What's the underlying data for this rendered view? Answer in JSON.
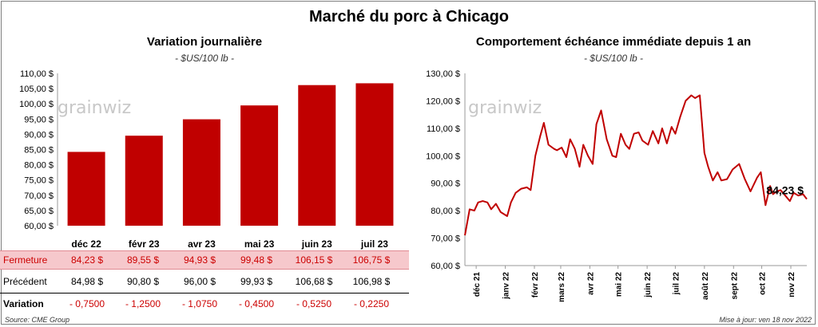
{
  "title": "Marché du porc à Chicago",
  "left": {
    "title": "Variation  journalière",
    "unit": "- $US/100 lb -"
  },
  "right": {
    "title": "Comportement  échéance immédiate depuis 1 an",
    "unit": "- $US/100 lb -",
    "last_label": "84,23 $"
  },
  "watermark": "grainwiz",
  "table": {
    "fermeture_label": "Fermeture",
    "precedent_label": "Précédent",
    "variation_label": "Variation",
    "fermeture": [
      "84,23  $",
      "89,55  $",
      "94,93  $",
      "99,48  $",
      "106,15  $",
      "106,75  $"
    ],
    "precedent": [
      "84,98  $",
      "90,80  $",
      "96,00  $",
      "99,93  $",
      "106,68  $",
      "106,98  $"
    ],
    "variation": [
      "- 0,7500",
      "- 1,2500",
      "- 1,0750",
      "- 0,4500",
      "- 0,5250",
      "- 0,2250"
    ]
  },
  "footer": {
    "source": "Source: CME Group",
    "updated": "Mise à jour: ven 18 nov 2022"
  },
  "colors": {
    "bar": "#c00000",
    "line": "#c00000",
    "highlight": "#f6c8cc"
  },
  "chart_data": [
    {
      "type": "bar",
      "title": "Variation  journalière",
      "subtitle": "- $US/100 lb -",
      "categories": [
        "déc 22",
        "févr 23",
        "avr 23",
        "mai 23",
        "juin 23",
        "juil 23"
      ],
      "values": [
        84.23,
        89.55,
        94.93,
        99.48,
        106.15,
        106.75
      ],
      "ylim": [
        60,
        110
      ],
      "yticks": [
        60,
        65,
        70,
        75,
        80,
        85,
        90,
        95,
        100,
        105,
        110
      ],
      "ytick_labels": [
        "60,00 $",
        "65,00 $",
        "70,00 $",
        "75,00 $",
        "80,00 $",
        "85,00 $",
        "90,00 $",
        "95,00 $",
        "100,00 $",
        "105,00 $",
        "110,00 $"
      ],
      "grid": false,
      "legend": "none"
    },
    {
      "type": "line",
      "title": "Comportement  échéance immédiate depuis 1 an",
      "subtitle": "- $US/100 lb -",
      "x": [
        "2021-11-19",
        "2021-11-24",
        "2021-11-29",
        "2021-12-03",
        "2021-12-08",
        "2021-12-13",
        "2021-12-17",
        "2021-12-22",
        "2021-12-27",
        "2022-01-03",
        "2022-01-07",
        "2022-01-12",
        "2022-01-18",
        "2022-01-24",
        "2022-01-28",
        "2022-02-02",
        "2022-02-07",
        "2022-02-11",
        "2022-02-16",
        "2022-02-22",
        "2022-02-25",
        "2022-03-02",
        "2022-03-07",
        "2022-03-11",
        "2022-03-16",
        "2022-03-21",
        "2022-03-25",
        "2022-03-30",
        "2022-04-04",
        "2022-04-08",
        "2022-04-13",
        "2022-04-19",
        "2022-04-25",
        "2022-04-29",
        "2022-05-04",
        "2022-05-09",
        "2022-05-13",
        "2022-05-18",
        "2022-05-23",
        "2022-05-27",
        "2022-06-02",
        "2022-06-07",
        "2022-06-13",
        "2022-06-17",
        "2022-06-22",
        "2022-06-27",
        "2022-07-01",
        "2022-07-06",
        "2022-07-12",
        "2022-07-18",
        "2022-07-22",
        "2022-07-27",
        "2022-08-01",
        "2022-08-05",
        "2022-08-10",
        "2022-08-15",
        "2022-08-19",
        "2022-08-25",
        "2022-08-31",
        "2022-09-07",
        "2022-09-13",
        "2022-09-19",
        "2022-09-26",
        "2022-09-30",
        "2022-10-05",
        "2022-10-10",
        "2022-10-13",
        "2022-10-17",
        "2022-10-21",
        "2022-10-26",
        "2022-10-31",
        "2022-11-04",
        "2022-11-09",
        "2022-11-14",
        "2022-11-18"
      ],
      "values": [
        71.0,
        80.5,
        80.0,
        83.0,
        83.5,
        83.0,
        80.5,
        82.5,
        79.5,
        78.0,
        83.0,
        86.5,
        88.0,
        88.5,
        87.5,
        100.0,
        107.0,
        112.0,
        104.0,
        102.5,
        102.0,
        103.0,
        99.5,
        106.0,
        102.5,
        96.0,
        104.0,
        100.0,
        97.0,
        111.5,
        116.5,
        106.0,
        100.0,
        99.5,
        108.0,
        104.0,
        102.5,
        108.0,
        108.5,
        105.5,
        104.0,
        109.0,
        104.5,
        110.0,
        104.5,
        110.5,
        108.0,
        114.0,
        120.0,
        122.0,
        121.0,
        122.0,
        101.0,
        96.0,
        91.0,
        94.0,
        91.0,
        91.5,
        95.0,
        97.0,
        91.5,
        87.0,
        92.0,
        94.0,
        82.0,
        89.0,
        86.0,
        87.0,
        87.5,
        85.5,
        83.5,
        86.5,
        85.5,
        86.0,
        84.23
      ],
      "ylim": [
        60,
        130
      ],
      "yticks": [
        60,
        70,
        80,
        90,
        100,
        110,
        120,
        130
      ],
      "ytick_labels": [
        "60,00 $",
        "70,00 $",
        "80,00 $",
        "90,00 $",
        "100,00 $",
        "110,00 $",
        "120,00 $",
        "130,00 $"
      ],
      "xtick_labels": [
        "déc 21",
        "janv 22",
        "févr 22",
        "mars 22",
        "avr 22",
        "mai 22",
        "juin 22",
        "juil 22",
        "août 22",
        "sept 22",
        "oct 22",
        "nov 22"
      ],
      "annotations": [
        "84,23 $"
      ],
      "grid": false,
      "legend": "none"
    }
  ]
}
